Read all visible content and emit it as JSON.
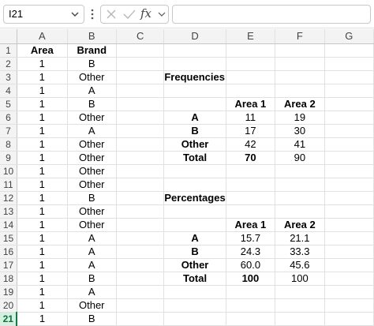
{
  "formula_bar": {
    "name_box": "I21",
    "fx_label": "fx",
    "formula": ""
  },
  "columns": [
    "A",
    "B",
    "C",
    "D",
    "E",
    "F",
    "G"
  ],
  "rows": [
    {
      "n": "1",
      "A": "Area",
      "B": "Brand",
      "D": "",
      "E": "",
      "F": ""
    },
    {
      "n": "2",
      "A": "1",
      "B": "B",
      "D": "",
      "E": "",
      "F": ""
    },
    {
      "n": "3",
      "A": "1",
      "B": "Other",
      "D": "Frequencies",
      "E": "",
      "F": ""
    },
    {
      "n": "4",
      "A": "1",
      "B": "A",
      "D": "",
      "E": "",
      "F": ""
    },
    {
      "n": "5",
      "A": "1",
      "B": "B",
      "D": "",
      "E": "Area 1",
      "F": "Area 2"
    },
    {
      "n": "6",
      "A": "1",
      "B": "Other",
      "D": "A",
      "E": "11",
      "F": "19"
    },
    {
      "n": "7",
      "A": "1",
      "B": "A",
      "D": "B",
      "E": "17",
      "F": "30"
    },
    {
      "n": "8",
      "A": "1",
      "B": "Other",
      "D": "Other",
      "E": "42",
      "F": "41"
    },
    {
      "n": "9",
      "A": "1",
      "B": "Other",
      "D": "Total",
      "E": "70",
      "F": "90"
    },
    {
      "n": "10",
      "A": "1",
      "B": "Other",
      "D": "",
      "E": "",
      "F": ""
    },
    {
      "n": "11",
      "A": "1",
      "B": "Other",
      "D": "",
      "E": "",
      "F": ""
    },
    {
      "n": "12",
      "A": "1",
      "B": "B",
      "D": "Percentages",
      "E": "",
      "F": ""
    },
    {
      "n": "13",
      "A": "1",
      "B": "Other",
      "D": "",
      "E": "",
      "F": ""
    },
    {
      "n": "14",
      "A": "1",
      "B": "Other",
      "D": "",
      "E": "Area 1",
      "F": "Area 2"
    },
    {
      "n": "15",
      "A": "1",
      "B": "A",
      "D": "A",
      "E": "15.7",
      "F": "21.1"
    },
    {
      "n": "16",
      "A": "1",
      "B": "A",
      "D": "B",
      "E": "24.3",
      "F": "33.3"
    },
    {
      "n": "17",
      "A": "1",
      "B": "A",
      "D": "Other",
      "E": "60.0",
      "F": "45.6"
    },
    {
      "n": "18",
      "A": "1",
      "B": "B",
      "D": "Total",
      "E": "100",
      "F": "100"
    },
    {
      "n": "19",
      "A": "1",
      "B": "A",
      "D": "",
      "E": "",
      "F": ""
    },
    {
      "n": "20",
      "A": "1",
      "B": "Other",
      "D": "",
      "E": "",
      "F": ""
    },
    {
      "n": "21",
      "A": "1",
      "B": "B",
      "D": "",
      "E": "",
      "F": ""
    }
  ],
  "active_row": "21",
  "colors": {
    "header_bg": "#f3f3f3",
    "gridline": "#e1e1e1",
    "active_accent": "#107c41"
  }
}
